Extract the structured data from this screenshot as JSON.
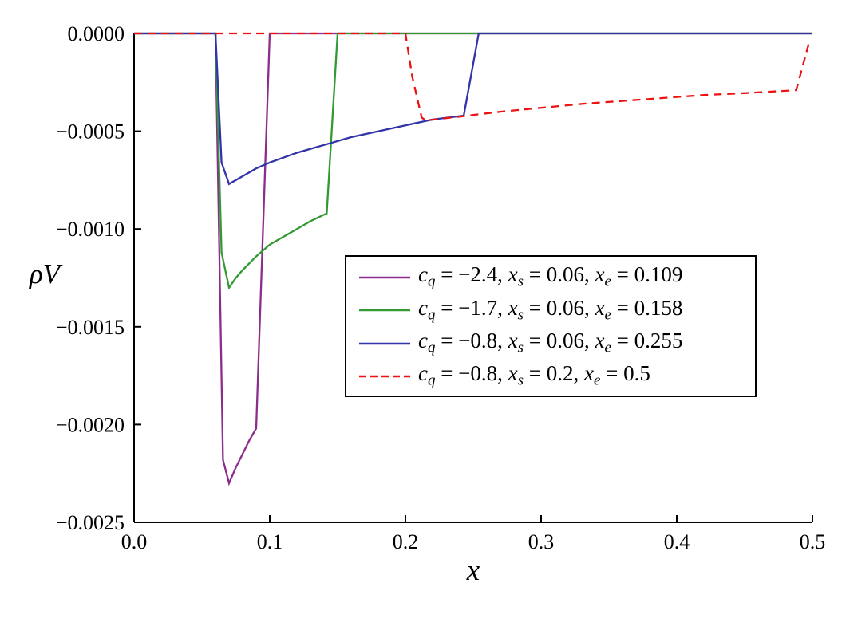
{
  "chart_data": {
    "type": "line",
    "title": "",
    "grid": false,
    "x_axis": {
      "label_segments": [
        [
          "x",
          "i"
        ]
      ],
      "lim": [
        0,
        0.5
      ],
      "ticks": [
        {
          "value": 0.0,
          "label": "0.0"
        },
        {
          "value": 0.1,
          "label": "0.1"
        },
        {
          "value": 0.2,
          "label": "0.2"
        },
        {
          "value": 0.3,
          "label": "0.3"
        },
        {
          "value": 0.4,
          "label": "0.4"
        },
        {
          "value": 0.5,
          "label": "0.5"
        }
      ]
    },
    "y_axis": {
      "label_segments": [
        [
          "ρ",
          "i"
        ],
        [
          "V",
          "i"
        ]
      ],
      "lim": [
        -0.0025,
        0
      ],
      "ticks": [
        {
          "value": 0.0,
          "label": "0.0000"
        },
        {
          "value": -0.0005,
          "label": "−0.0005"
        },
        {
          "value": -0.001,
          "label": "−0.0010"
        },
        {
          "value": -0.0015,
          "label": "−0.0015"
        },
        {
          "value": -0.002,
          "label": "−0.0020"
        },
        {
          "value": -0.0025,
          "label": "−0.0025"
        }
      ]
    },
    "series": [
      {
        "id": "cq-24",
        "color": "#8B2D8B",
        "style": "solid",
        "points": [
          [
            0,
            0
          ],
          [
            0.06,
            0
          ],
          [
            0.0655,
            -0.00218
          ],
          [
            0.07,
            -0.0023
          ],
          [
            0.075,
            -0.00222
          ],
          [
            0.08,
            -0.00215
          ],
          [
            0.085,
            -0.00208
          ],
          [
            0.09,
            -0.00202
          ],
          [
            0.1,
            0
          ],
          [
            0.5,
            0
          ]
        ]
      },
      {
        "id": "cq-17",
        "color": "#339933",
        "style": "solid",
        "points": [
          [
            0,
            0
          ],
          [
            0.06,
            0
          ],
          [
            0.0645,
            -0.00112
          ],
          [
            0.07,
            -0.0013
          ],
          [
            0.075,
            -0.00125
          ],
          [
            0.08,
            -0.00121
          ],
          [
            0.09,
            -0.00114
          ],
          [
            0.1,
            -0.00108
          ],
          [
            0.11,
            -0.00104
          ],
          [
            0.12,
            -0.001
          ],
          [
            0.13,
            -0.00096
          ],
          [
            0.142,
            -0.00092
          ],
          [
            0.15,
            0
          ],
          [
            0.5,
            0
          ]
        ]
      },
      {
        "id": "cq-08",
        "color": "#3333AA",
        "style": "solid",
        "points": [
          [
            0,
            0
          ],
          [
            0.06,
            0
          ],
          [
            0.0645,
            -0.00066
          ],
          [
            0.07,
            -0.00077
          ],
          [
            0.08,
            -0.00073
          ],
          [
            0.09,
            -0.00069
          ],
          [
            0.1,
            -0.00066
          ],
          [
            0.12,
            -0.00061
          ],
          [
            0.14,
            -0.00057
          ],
          [
            0.16,
            -0.00053
          ],
          [
            0.18,
            -0.0005
          ],
          [
            0.2,
            -0.00047
          ],
          [
            0.22,
            -0.00044
          ],
          [
            0.243,
            -0.00042
          ],
          [
            0.254,
            0
          ],
          [
            0.5,
            0
          ]
        ]
      },
      {
        "id": "cq-08-late",
        "color": "#EE1111",
        "style": "dashed",
        "points": [
          [
            0,
            0
          ],
          [
            0.2,
            0
          ],
          [
            0.205,
            -0.00022
          ],
          [
            0.212,
            -0.00043
          ],
          [
            0.215,
            -0.000445
          ],
          [
            0.24,
            -0.000425
          ],
          [
            0.27,
            -0.0004
          ],
          [
            0.3,
            -0.00038
          ],
          [
            0.33,
            -0.00036
          ],
          [
            0.36,
            -0.000345
          ],
          [
            0.39,
            -0.00033
          ],
          [
            0.42,
            -0.000315
          ],
          [
            0.45,
            -0.000305
          ],
          [
            0.488,
            -0.00029
          ],
          [
            0.497,
            -6e-05
          ],
          [
            0.5,
            -5e-05
          ]
        ]
      }
    ],
    "legend": {
      "position": "center",
      "entries": [
        {
          "series": "cq-24",
          "color": "#8B2D8B",
          "style": "solid",
          "label_segments": [
            [
              "c",
              "i"
            ],
            [
              "q",
              "sub"
            ],
            [
              " = −2.4, ",
              ""
            ],
            [
              "x",
              "i"
            ],
            [
              "s",
              "sub"
            ],
            [
              " = 0.06, ",
              ""
            ],
            [
              "x",
              "i"
            ],
            [
              "e",
              "sub"
            ],
            [
              " = 0.109",
              ""
            ]
          ]
        },
        {
          "series": "cq-17",
          "color": "#339933",
          "style": "solid",
          "label_segments": [
            [
              "c",
              "i"
            ],
            [
              "q",
              "sub"
            ],
            [
              " = −1.7, ",
              ""
            ],
            [
              "x",
              "i"
            ],
            [
              "s",
              "sub"
            ],
            [
              " = 0.06, ",
              ""
            ],
            [
              "x",
              "i"
            ],
            [
              "e",
              "sub"
            ],
            [
              " = 0.158",
              ""
            ]
          ]
        },
        {
          "series": "cq-08",
          "color": "#3333AA",
          "style": "solid",
          "label_segments": [
            [
              "c",
              "i"
            ],
            [
              "q",
              "sub"
            ],
            [
              " = −0.8, ",
              ""
            ],
            [
              "x",
              "i"
            ],
            [
              "s",
              "sub"
            ],
            [
              " = 0.06, ",
              ""
            ],
            [
              "x",
              "i"
            ],
            [
              "e",
              "sub"
            ],
            [
              " = 0.255",
              ""
            ]
          ]
        },
        {
          "series": "cq-08-late",
          "color": "#EE1111",
          "style": "dashed",
          "label_segments": [
            [
              "c",
              "i"
            ],
            [
              "q",
              "sub"
            ],
            [
              " = −0.8, ",
              ""
            ],
            [
              "x",
              "i"
            ],
            [
              "s",
              "sub"
            ],
            [
              " = 0.2, ",
              ""
            ],
            [
              "x",
              "i"
            ],
            [
              "e",
              "sub"
            ],
            [
              " = 0.5",
              ""
            ]
          ]
        }
      ]
    }
  }
}
